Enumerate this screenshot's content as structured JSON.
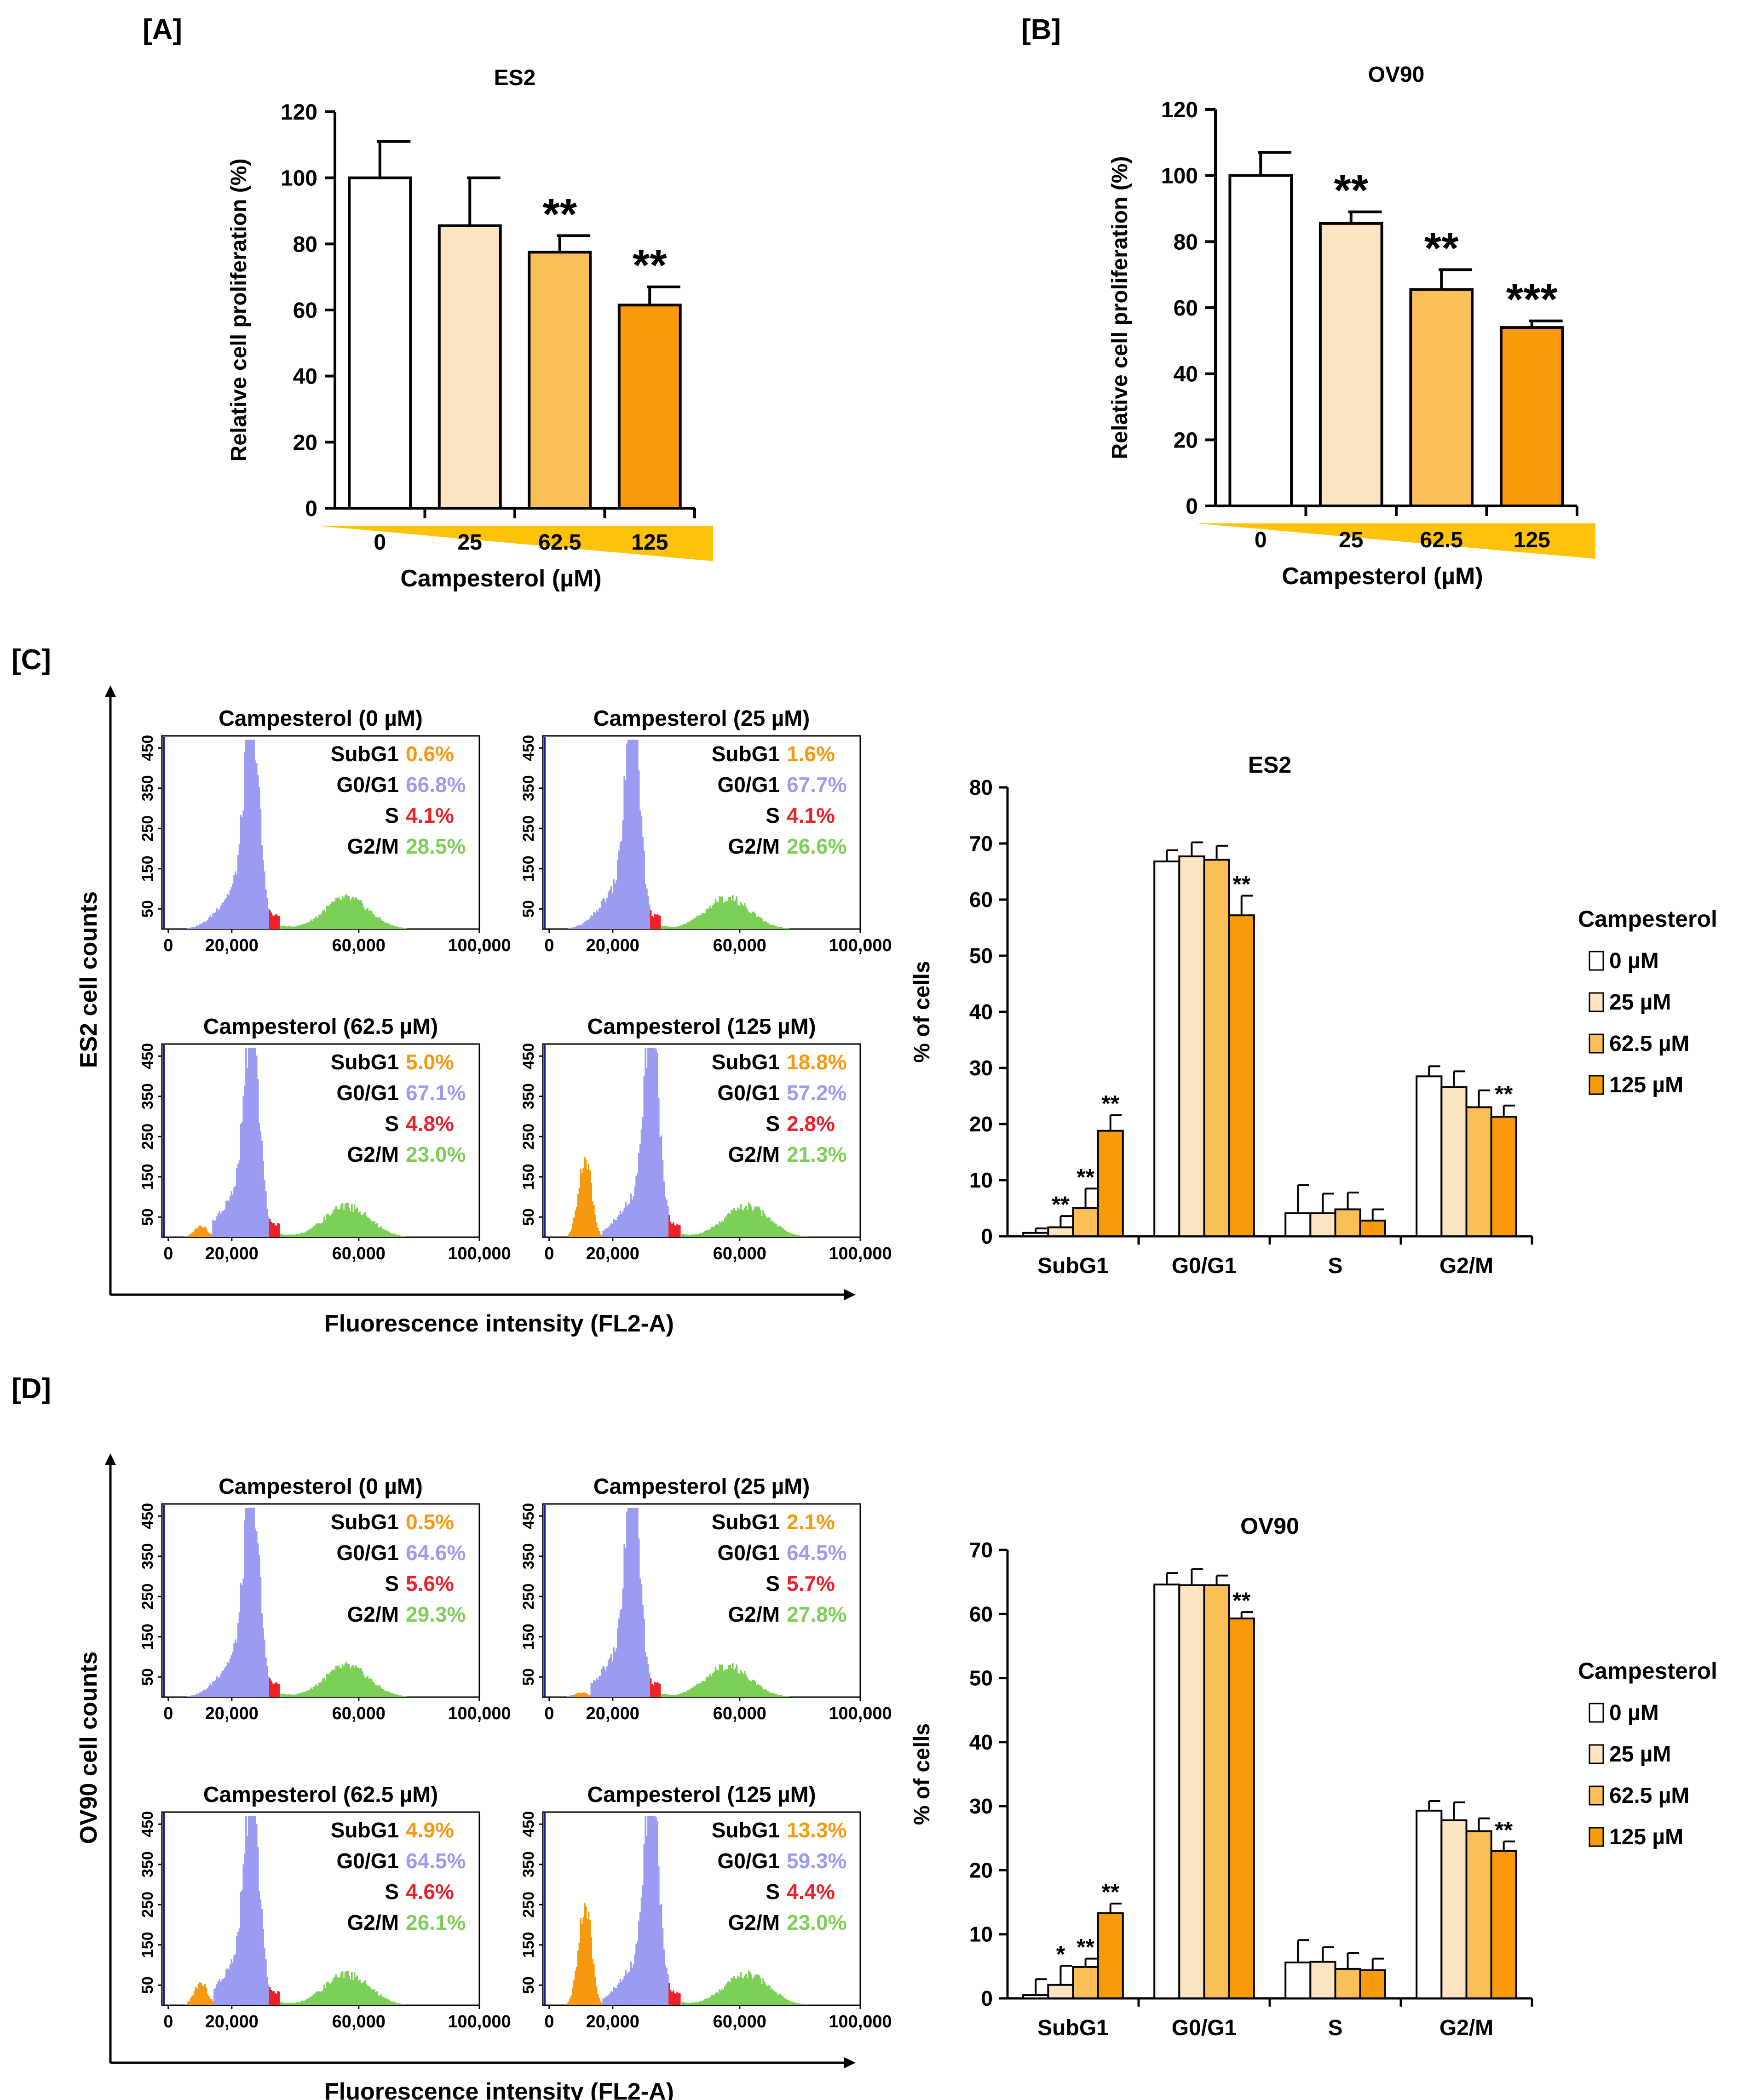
{
  "panels": {
    "A": {
      "label": "[A]",
      "chart_data": {
        "type": "bar",
        "title": "ES2",
        "ylabel": "Relative cell proliferation (%)",
        "xlabel": "Campesterol (µM)",
        "ylim": [
          0,
          120
        ],
        "yticks": [
          "0",
          "20",
          "40",
          "60",
          "80",
          "100",
          "120"
        ],
        "categories": [
          "0",
          "25",
          "62.5",
          "125"
        ],
        "values": [
          100,
          85.5,
          77.5,
          61.5
        ],
        "errors": [
          11,
          14.5,
          5,
          5.5
        ],
        "significance": [
          "",
          "",
          "**",
          "**"
        ],
        "colors": [
          "#ffffff",
          "#fde5c2",
          "#fbbf58",
          "#f99a0a"
        ]
      }
    },
    "B": {
      "label": "[B]",
      "chart_data": {
        "type": "bar",
        "title": "OV90",
        "ylabel": "Relative cell proliferation (%)",
        "xlabel": "Campesterol (µM)",
        "ylim": [
          0,
          120
        ],
        "yticks": [
          "0",
          "20",
          "40",
          "60",
          "80",
          "100",
          "120"
        ],
        "categories": [
          "0",
          "25",
          "62.5",
          "125"
        ],
        "values": [
          100,
          85.5,
          65.5,
          54
        ],
        "errors": [
          7,
          3.5,
          6,
          2
        ],
        "significance": [
          "",
          "**",
          "**",
          "***"
        ],
        "colors": [
          "#ffffff",
          "#fde5c2",
          "#fbbf58",
          "#f99a0a"
        ]
      }
    },
    "C": {
      "label": "[C]",
      "y_axis_label": "ES2 cell counts",
      "x_axis_label": "Fluorescence intensity (FL2-A)",
      "histograms": [
        {
          "title": "Campesterol (0 µM)",
          "stats": [
            {
              "k": "SubG1",
              "v": "0.6%"
            },
            {
              "k": "G0/G1",
              "v": "66.8%"
            },
            {
              "k": "S",
              "v": "4.1%"
            },
            {
              "k": "G2/M",
              "v": "28.5%"
            }
          ],
          "subg1_peak": 0
        },
        {
          "title": "Campesterol (25 µM)",
          "stats": [
            {
              "k": "SubG1",
              "v": "1.6%"
            },
            {
              "k": "G0/G1",
              "v": "67.7%"
            },
            {
              "k": "S",
              "v": "4.1%"
            },
            {
              "k": "G2/M",
              "v": "26.6%"
            }
          ],
          "subg1_peak": 0
        },
        {
          "title": "Campesterol (62.5 µM)",
          "stats": [
            {
              "k": "SubG1",
              "v": "5.0%"
            },
            {
              "k": "G0/G1",
              "v": "67.1%"
            },
            {
              "k": "S",
              "v": "4.8%"
            },
            {
              "k": "G2/M",
              "v": "23.0%"
            }
          ],
          "subg1_peak": 0.05
        },
        {
          "title": "Campesterol (125 µM)",
          "stats": [
            {
              "k": "SubG1",
              "v": "18.8%"
            },
            {
              "k": "G0/G1",
              "v": "57.2%"
            },
            {
              "k": "S",
              "v": "2.8%"
            },
            {
              "k": "G2/M",
              "v": "21.3%"
            }
          ],
          "subg1_peak": 0.33
        }
      ],
      "hist_xticks": [
        "0",
        "20,000",
        "60,000",
        "100,000"
      ],
      "hist_yticks": [
        "50",
        "150",
        "250",
        "350",
        "450"
      ],
      "chart_data": {
        "type": "bar",
        "title": "ES2",
        "ylabel": "% of cells",
        "ylim": [
          0,
          80
        ],
        "yticks": [
          "0",
          "10",
          "20",
          "30",
          "40",
          "50",
          "60",
          "70",
          "80"
        ],
        "categories": [
          "SubG1",
          "G0/G1",
          "S",
          "G2/M"
        ],
        "legend_title": "Campesterol",
        "series": [
          {
            "name": "0 µM",
            "values": [
              0.6,
              66.8,
              4.1,
              28.5
            ],
            "errors": [
              0.8,
              2,
              5,
              1.8
            ],
            "significance": [
              "",
              "",
              "",
              ""
            ]
          },
          {
            "name": "25 µM",
            "values": [
              1.6,
              67.7,
              4.1,
              26.6
            ],
            "errors": [
              2,
              2.5,
              3.5,
              2.8
            ],
            "significance": [
              "**",
              "",
              "",
              ""
            ]
          },
          {
            "name": "62.5 µM",
            "values": [
              5.0,
              67.1,
              4.8,
              23.0
            ],
            "errors": [
              3.5,
              2.5,
              3,
              3
            ],
            "significance": [
              "**",
              "",
              "",
              ""
            ]
          },
          {
            "name": "125 µM",
            "values": [
              18.8,
              57.2,
              2.8,
              21.3
            ],
            "errors": [
              2.8,
              3.5,
              2,
              2
            ],
            "significance": [
              "**",
              "**",
              "",
              "**"
            ]
          }
        ],
        "colors": [
          "#ffffff",
          "#fde5c2",
          "#fbbf58",
          "#f99a0a"
        ]
      }
    },
    "D": {
      "label": "[D]",
      "y_axis_label": "OV90 cell counts",
      "x_axis_label": "Fluorescence intensity (FL2-A)",
      "histograms": [
        {
          "title": "Campesterol (0 µM)",
          "stats": [
            {
              "k": "SubG1",
              "v": "0.5%"
            },
            {
              "k": "G0/G1",
              "v": "64.6%"
            },
            {
              "k": "S",
              "v": "5.6%"
            },
            {
              "k": "G2/M",
              "v": "29.3%"
            }
          ],
          "subg1_peak": 0
        },
        {
          "title": "Campesterol (25 µM)",
          "stats": [
            {
              "k": "SubG1",
              "v": "2.1%"
            },
            {
              "k": "G0/G1",
              "v": "64.5%"
            },
            {
              "k": "S",
              "v": "5.7%"
            },
            {
              "k": "G2/M",
              "v": "27.8%"
            }
          ],
          "subg1_peak": 0.02
        },
        {
          "title": "Campesterol (62.5 µM)",
          "stats": [
            {
              "k": "SubG1",
              "v": "4.9%"
            },
            {
              "k": "G0/G1",
              "v": "64.5%"
            },
            {
              "k": "S",
              "v": "4.6%"
            },
            {
              "k": "G2/M",
              "v": "26.1%"
            }
          ],
          "subg1_peak": 0.1
        },
        {
          "title": "Campesterol (125 µM)",
          "stats": [
            {
              "k": "SubG1",
              "v": "13.3%"
            },
            {
              "k": "G0/G1",
              "v": "59.3%"
            },
            {
              "k": "S",
              "v": "4.4%"
            },
            {
              "k": "G2/M",
              "v": "23.0%"
            }
          ],
          "subg1_peak": 0.42
        }
      ],
      "hist_xticks": [
        "0",
        "20,000",
        "60,000",
        "100,000"
      ],
      "hist_yticks": [
        "50",
        "150",
        "250",
        "350",
        "450"
      ],
      "chart_data": {
        "type": "bar",
        "title": "OV90",
        "ylabel": "% of cells",
        "ylim": [
          0,
          70
        ],
        "yticks": [
          "0",
          "10",
          "20",
          "30",
          "40",
          "50",
          "60",
          "70"
        ],
        "categories": [
          "SubG1",
          "G0/G1",
          "S",
          "G2/M"
        ],
        "legend_title": "Campesterol",
        "series": [
          {
            "name": "0 µM",
            "values": [
              0.5,
              64.6,
              5.6,
              29.3
            ],
            "errors": [
              2.5,
              1.8,
              3.5,
              1.5
            ],
            "significance": [
              "",
              "",
              "",
              ""
            ]
          },
          {
            "name": "25 µM",
            "values": [
              2.1,
              64.5,
              5.7,
              27.8
            ],
            "errors": [
              3,
              2.5,
              2.3,
              2.8
            ],
            "significance": [
              "*",
              "",
              "",
              ""
            ]
          },
          {
            "name": "62.5 µM",
            "values": [
              4.9,
              64.5,
              4.6,
              26.1
            ],
            "errors": [
              1.3,
              1.5,
              2.5,
              2
            ],
            "significance": [
              "**",
              "",
              "",
              ""
            ]
          },
          {
            "name": "125 µM",
            "values": [
              13.3,
              59.3,
              4.4,
              23.0
            ],
            "errors": [
              1.5,
              1,
              1.8,
              1.5
            ],
            "significance": [
              "**",
              "**",
              "",
              "**"
            ]
          }
        ],
        "colors": [
          "#ffffff",
          "#fde5c2",
          "#fbbf58",
          "#f99a0a"
        ]
      }
    }
  },
  "phase_colors": {
    "subg1": "#f7990f",
    "g0g1": "#9b9bf2",
    "s": "#f0202a",
    "g2m": "#7ccf57",
    "marker": "#1a1aa0"
  }
}
